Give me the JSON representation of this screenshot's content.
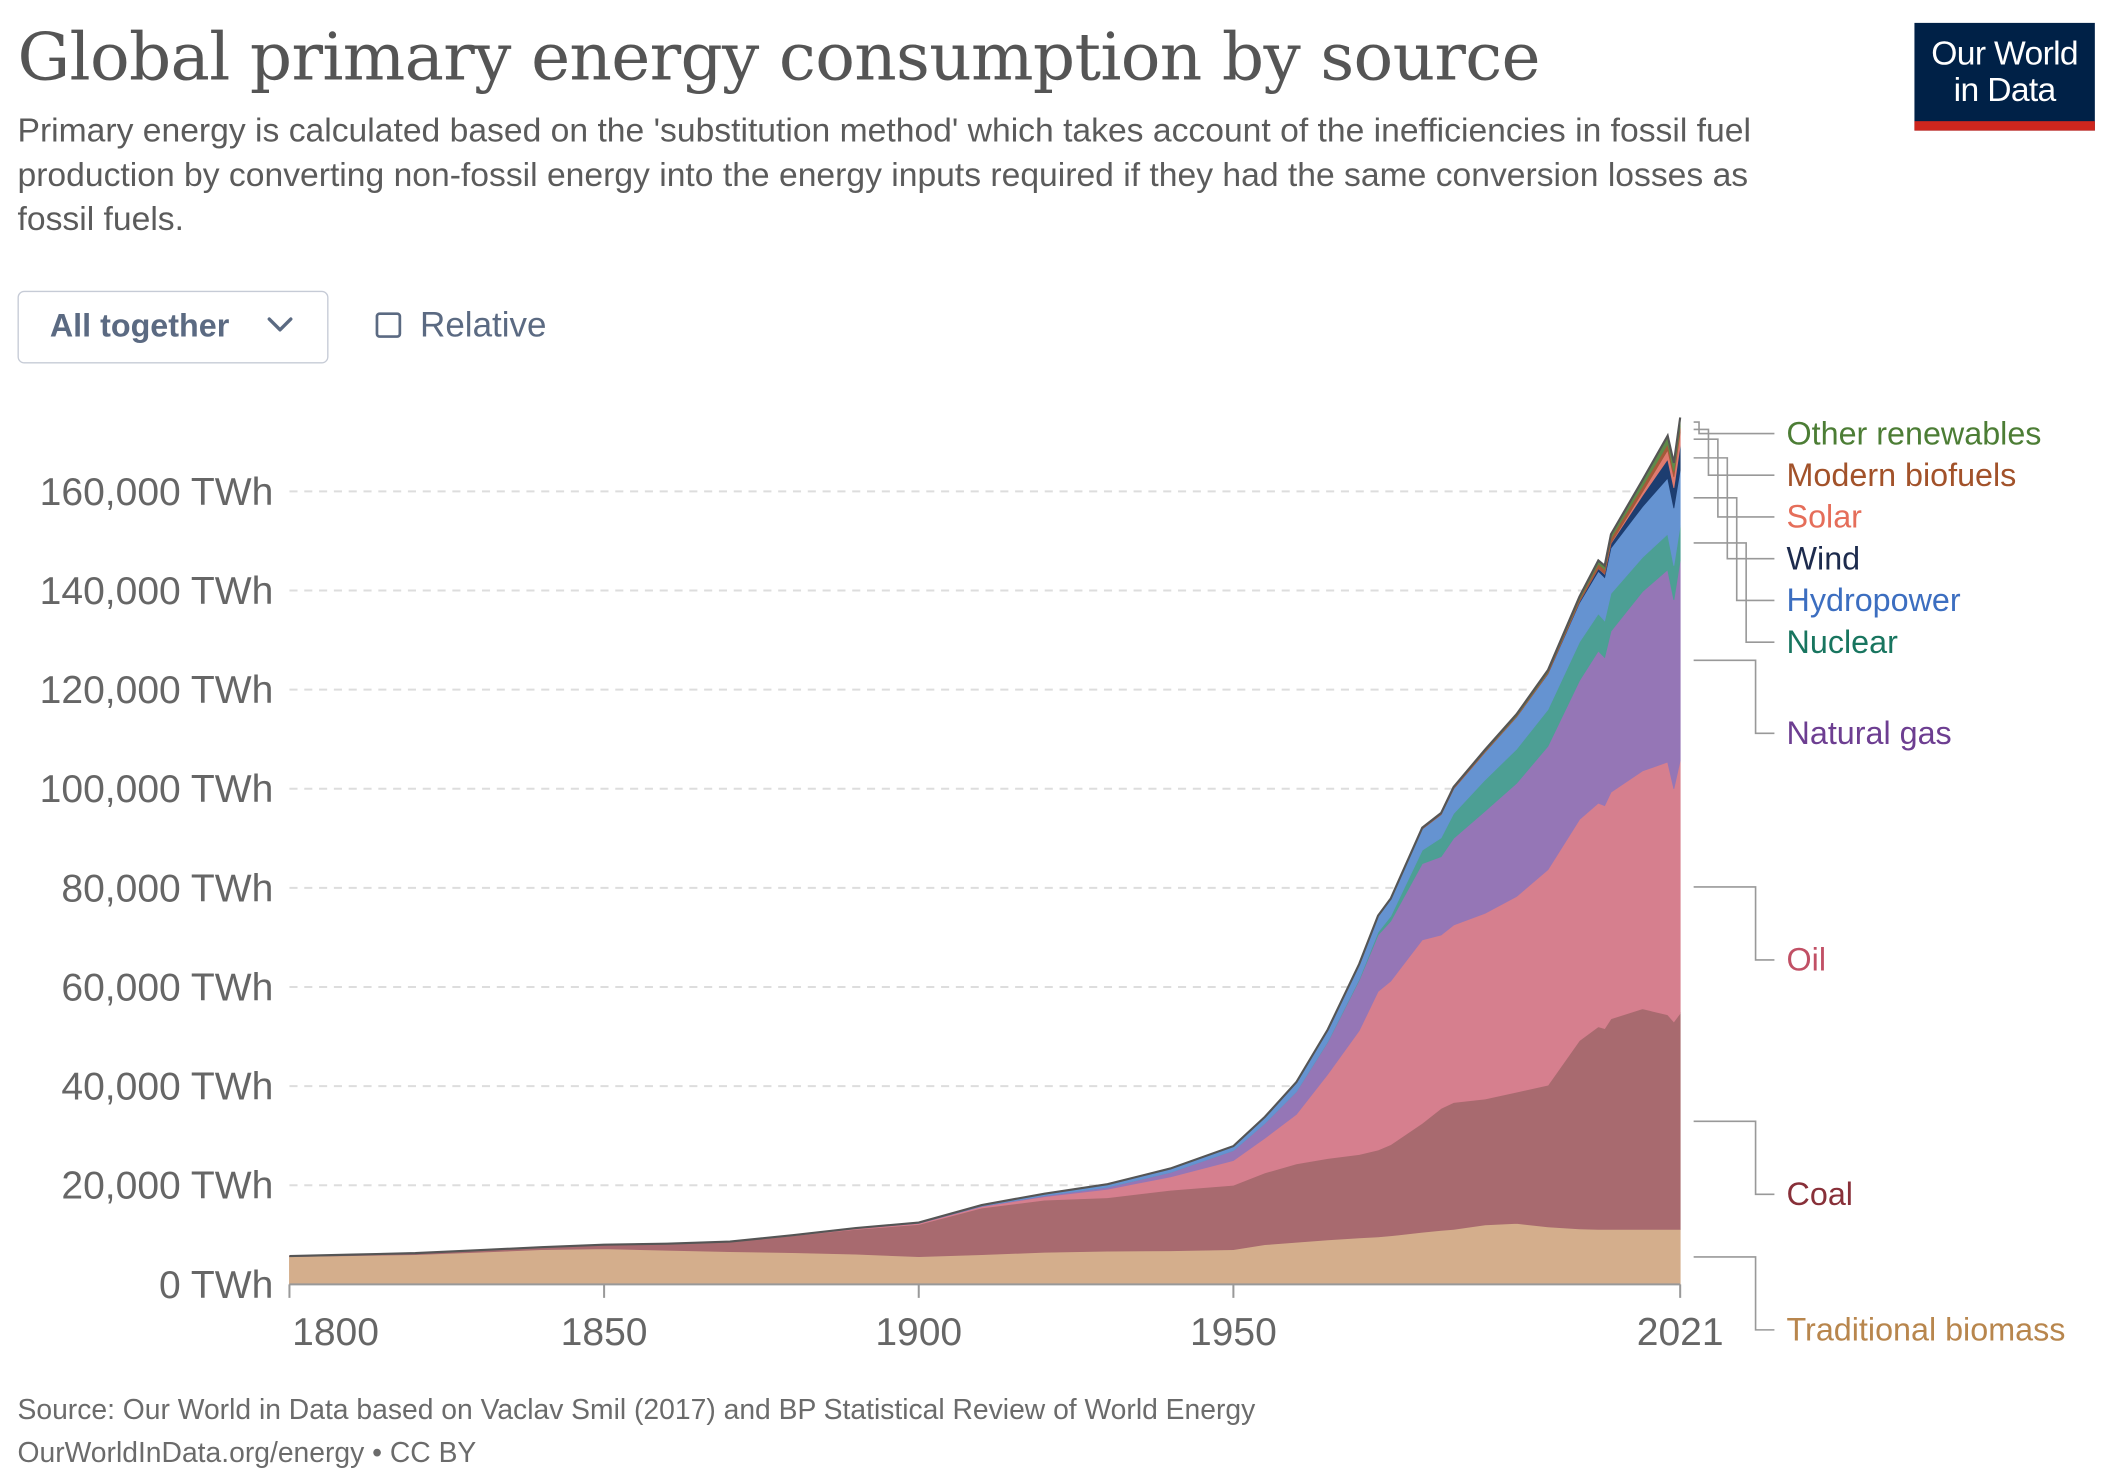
{
  "header": {
    "title": "Global primary energy consumption by source",
    "subtitle": "Primary energy is calculated based on the 'substitution method' which takes account of the inefficiencies in fossil fuel production by converting non-fossil energy into the energy inputs required if they had the same conversion losses as fossil fuels.",
    "logo_line1": "Our World",
    "logo_line2": "in Data"
  },
  "controls": {
    "dropdown_label": "All together",
    "relative_label": "Relative",
    "relative_checked": false
  },
  "footer": {
    "source": "Source: Our World in Data based on Vaclav Smil (2017) and BP Statistical Review of World Energy",
    "license": "OurWorldInData.org/energy • CC BY"
  },
  "colors": {
    "Traditional biomass": "#d4ae8c",
    "Coal": "#a86a6f",
    "Oil": "#d67f8e",
    "Natural gas": "#9576b6",
    "Nuclear": "#4c9f94",
    "Hydropower": "#6593d1",
    "Wind": "#1d3d70",
    "Solar": "#e07a6f",
    "Modern biofuels": "#a6593a",
    "Other renewables": "#5e8a49"
  },
  "legend_label_colors": {
    "Traditional biomass": "#b8864d",
    "Coal": "#883039",
    "Oil": "#c15065",
    "Natural gas": "#6d3e91",
    "Nuclear": "#18755f",
    "Hydropower": "#3c6ec0",
    "Wind": "#1d2b4d",
    "Solar": "#e56e5a",
    "Modern biofuels": "#a2522a",
    "Other renewables": "#4c7d35"
  },
  "chart_data": {
    "type": "area",
    "stacked": true,
    "title": "Global primary energy consumption by source",
    "xlabel": "",
    "ylabel": "",
    "x": [
      1800,
      1810,
      1820,
      1830,
      1840,
      1850,
      1860,
      1870,
      1880,
      1890,
      1900,
      1910,
      1920,
      1930,
      1940,
      1950,
      1955,
      1960,
      1965,
      1970,
      1973,
      1975,
      1980,
      1983,
      1985,
      1990,
      1995,
      2000,
      2005,
      2008,
      2009,
      2010,
      2015,
      2019,
      2020,
      2021
    ],
    "x_ticks": [
      "1800",
      "1850",
      "1900",
      "1950",
      "2021"
    ],
    "x_tick_values": [
      1800,
      1850,
      1900,
      1950,
      2021
    ],
    "xlim": [
      1800,
      2021
    ],
    "y_ticks": [
      "0 TWh",
      "20,000 TWh",
      "40,000 TWh",
      "60,000 TWh",
      "80,000 TWh",
      "100,000 TWh",
      "120,000 TWh",
      "140,000 TWh",
      "160,000 TWh"
    ],
    "y_tick_values": [
      0,
      20000,
      40000,
      60000,
      80000,
      100000,
      120000,
      140000,
      160000
    ],
    "ylim": [
      0,
      176000
    ],
    "grid": "horizontal dashed",
    "legend": "right, labels at line ends",
    "series": [
      {
        "name": "Traditional biomass",
        "values": [
          5600,
          5800,
          6000,
          6500,
          7000,
          7200,
          6900,
          6600,
          6400,
          6100,
          5600,
          6000,
          6500,
          6700,
          6800,
          7000,
          8000,
          8500,
          9000,
          9400,
          9600,
          9800,
          10500,
          10900,
          11100,
          12000,
          12300,
          11600,
          11200,
          11100,
          11100,
          11100,
          11100,
          11100,
          11100,
          11100
        ]
      },
      {
        "name": "Coal",
        "values": [
          100,
          200,
          300,
          400,
          500,
          800,
          1300,
          2000,
          3400,
          5000,
          6500,
          9400,
          10500,
          10800,
          12200,
          13000,
          14500,
          15800,
          16400,
          16800,
          17500,
          18400,
          22000,
          24600,
          25600,
          25400,
          26500,
          28600,
          38000,
          40900,
          40500,
          42500,
          44500,
          43300,
          41900,
          43600
        ]
      },
      {
        "name": "Oil",
        "values": [
          0,
          0,
          0,
          0,
          0,
          0,
          5,
          50,
          100,
          200,
          200,
          300,
          700,
          1700,
          2700,
          5000,
          7000,
          10000,
          17000,
          25000,
          32000,
          33000,
          37000,
          35000,
          35800,
          37500,
          39500,
          43500,
          44600,
          45100,
          45000,
          45700,
          48000,
          51000,
          47000,
          51000
        ]
      },
      {
        "name": "Natural gas",
        "values": [
          0,
          0,
          0,
          0,
          0,
          0,
          0,
          0,
          20,
          30,
          60,
          100,
          200,
          400,
          900,
          2000,
          3000,
          4600,
          6500,
          10200,
          11400,
          12100,
          15400,
          15800,
          17500,
          20600,
          22800,
          24900,
          28000,
          30700,
          29900,
          32500,
          36200,
          38800,
          38100,
          40400
        ]
      },
      {
        "name": "Nuclear",
        "values": [
          0,
          0,
          0,
          0,
          0,
          0,
          0,
          0,
          0,
          0,
          0,
          0,
          0,
          0,
          0,
          0,
          0,
          10,
          80,
          220,
          560,
          1000,
          2700,
          3800,
          5000,
          6300,
          6900,
          7400,
          7800,
          7500,
          7400,
          7600,
          6900,
          7200,
          6900,
          7000
        ]
      },
      {
        "name": "Hydropower",
        "values": [
          0,
          0,
          0,
          0,
          0,
          0,
          0,
          0,
          0,
          20,
          100,
          200,
          400,
          600,
          800,
          900,
          1300,
          1900,
          2400,
          3000,
          3300,
          3500,
          4300,
          4700,
          5000,
          5600,
          6500,
          7200,
          7900,
          8600,
          8700,
          9200,
          10200,
          11300,
          11600,
          11200
        ]
      },
      {
        "name": "Wind",
        "values": [
          0,
          0,
          0,
          0,
          0,
          0,
          0,
          0,
          0,
          0,
          0,
          0,
          0,
          0,
          0,
          0,
          0,
          0,
          0,
          0,
          0,
          0,
          0,
          0,
          0,
          10,
          20,
          80,
          270,
          570,
          710,
          880,
          2250,
          3800,
          4100,
          4900
        ]
      },
      {
        "name": "Solar",
        "values": [
          0,
          0,
          0,
          0,
          0,
          0,
          0,
          0,
          0,
          0,
          0,
          0,
          0,
          0,
          0,
          0,
          0,
          0,
          0,
          0,
          0,
          0,
          0,
          0,
          0,
          0,
          0,
          0,
          10,
          30,
          60,
          90,
          740,
          1850,
          2200,
          2700
        ]
      },
      {
        "name": "Modern biofuels",
        "values": [
          0,
          0,
          0,
          0,
          0,
          0,
          0,
          0,
          0,
          0,
          0,
          0,
          0,
          0,
          0,
          0,
          0,
          0,
          0,
          0,
          0,
          0,
          120,
          160,
          200,
          220,
          230,
          260,
          450,
          850,
          900,
          1000,
          1100,
          1200,
          1100,
          1200
        ]
      },
      {
        "name": "Other renewables",
        "values": [
          0,
          0,
          0,
          0,
          0,
          0,
          0,
          0,
          0,
          0,
          0,
          0,
          0,
          0,
          0,
          0,
          0,
          0,
          20,
          40,
          50,
          60,
          110,
          140,
          160,
          270,
          320,
          400,
          550,
          700,
          740,
          800,
          1300,
          1700,
          1750,
          1800
        ]
      }
    ]
  }
}
